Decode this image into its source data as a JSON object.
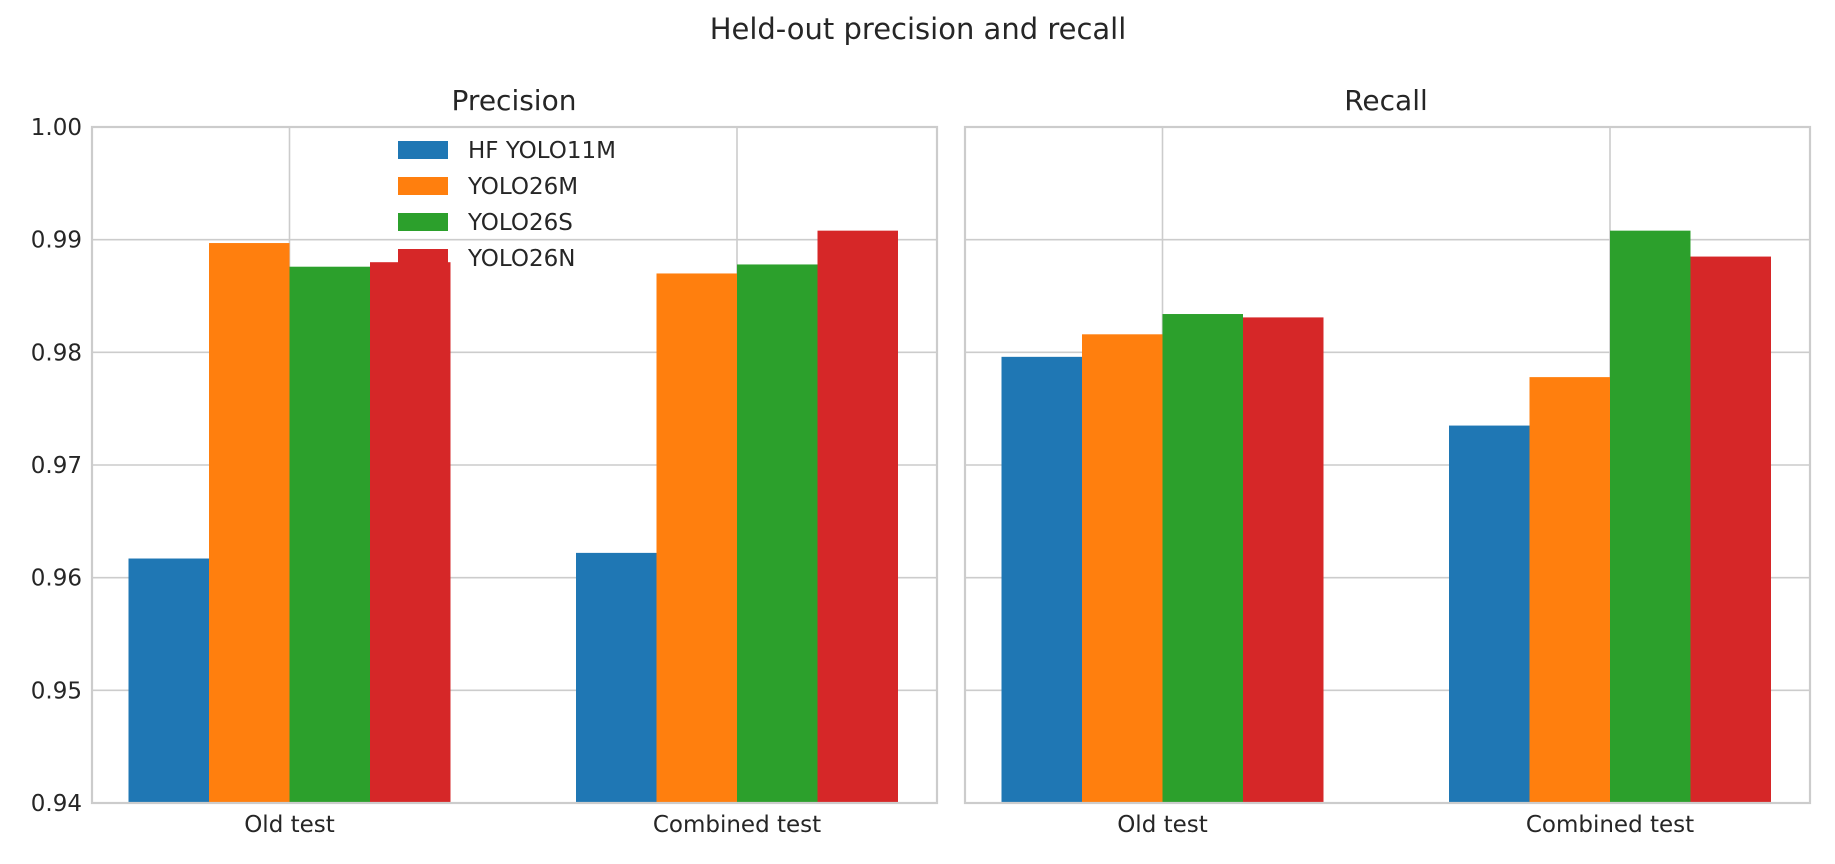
{
  "figure": {
    "title": "Held-out precision and recall"
  },
  "chart_data": [
    {
      "type": "bar",
      "title": "Precision",
      "categories": [
        "Old test",
        "Combined test"
      ],
      "series": [
        {
          "name": "HF YOLO11M",
          "color": "#1f77b4",
          "values": [
            0.9617,
            0.9622
          ]
        },
        {
          "name": "YOLO26M",
          "color": "#ff7f0e",
          "values": [
            0.9897,
            0.987
          ]
        },
        {
          "name": "YOLO26S",
          "color": "#2ca02c",
          "values": [
            0.9876,
            0.9878
          ]
        },
        {
          "name": "YOLO26N",
          "color": "#d62728",
          "values": [
            0.988,
            0.9908
          ]
        }
      ],
      "ylim": [
        0.94,
        1.0
      ],
      "yticks": [
        0.94,
        0.95,
        0.96,
        0.97,
        0.98,
        0.99,
        1.0
      ],
      "yticklabels": [
        "0.94",
        "0.95",
        "0.96",
        "0.97",
        "0.98",
        "0.99",
        "1.00"
      ],
      "grid": true,
      "legend": {
        "placement": "top-center",
        "entries": [
          "HF YOLO11M",
          "YOLO26M",
          "YOLO26S",
          "YOLO26N"
        ]
      }
    },
    {
      "type": "bar",
      "title": "Recall",
      "categories": [
        "Old test",
        "Combined test"
      ],
      "series": [
        {
          "name": "HF YOLO11M",
          "color": "#1f77b4",
          "values": [
            0.9796,
            0.9735
          ]
        },
        {
          "name": "YOLO26M",
          "color": "#ff7f0e",
          "values": [
            0.9816,
            0.9778
          ]
        },
        {
          "name": "YOLO26S",
          "color": "#2ca02c",
          "values": [
            0.9834,
            0.9908
          ]
        },
        {
          "name": "YOLO26N",
          "color": "#d62728",
          "values": [
            0.9831,
            0.9885
          ]
        }
      ],
      "ylim": [
        0.94,
        1.0
      ],
      "grid": true
    }
  ]
}
